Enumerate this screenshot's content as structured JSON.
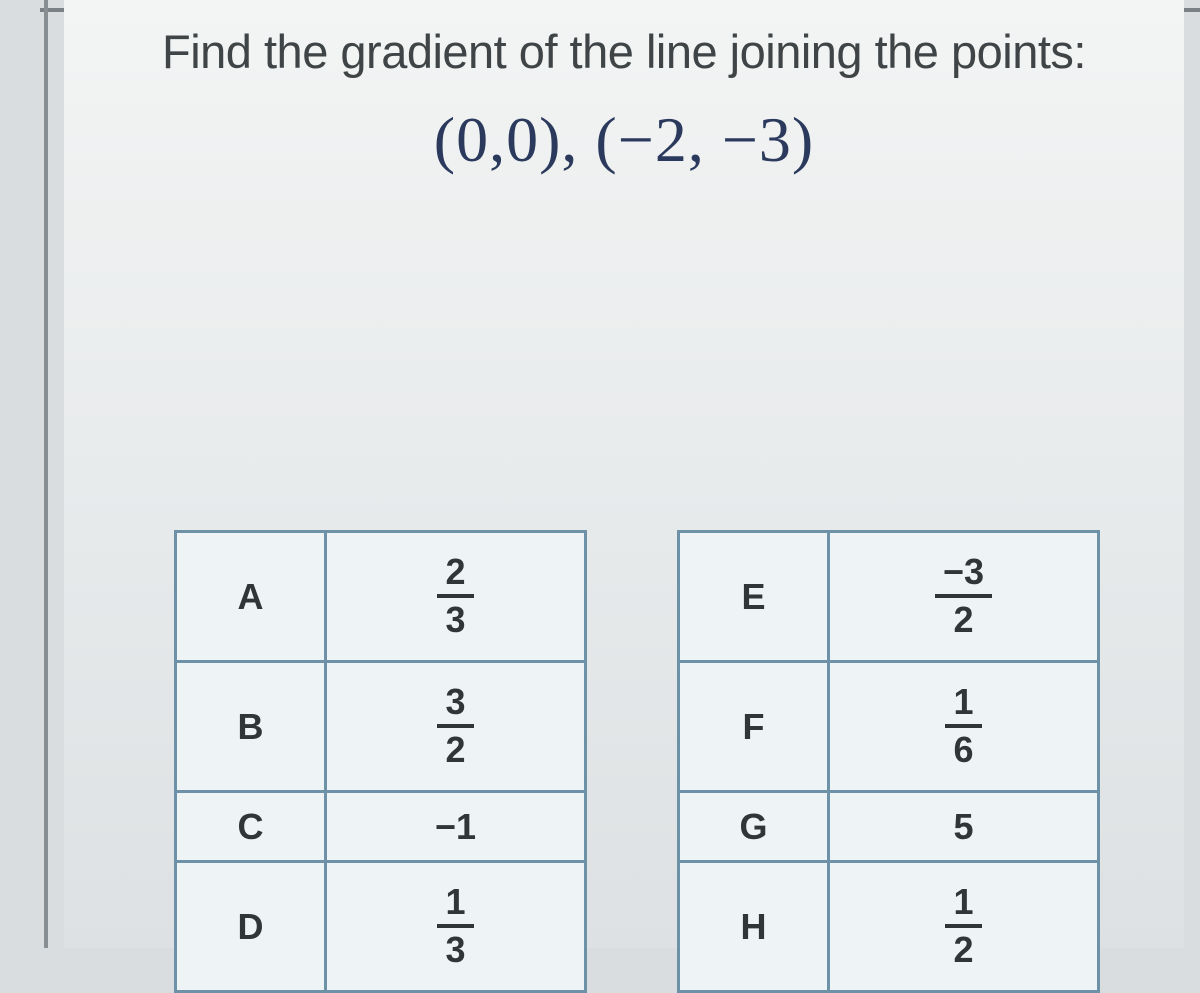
{
  "question": {
    "prompt": "Find the gradient of the line joining the points:",
    "points": "(0,0), (−2, −3)"
  },
  "table_left": {
    "border_color": "#6d91a6",
    "bg_color": "#eef3f5",
    "text_color": "#303538",
    "font_size_pt": 27,
    "rows": [
      {
        "letter": "A",
        "type": "fraction",
        "num": "2",
        "den": "3",
        "height": "frac"
      },
      {
        "letter": "B",
        "type": "fraction",
        "num": "3",
        "den": "2",
        "height": "frac"
      },
      {
        "letter": "C",
        "type": "plain",
        "value": "−1",
        "height": "small"
      },
      {
        "letter": "D",
        "type": "fraction",
        "num": "1",
        "den": "3",
        "height": "frac"
      }
    ]
  },
  "table_right": {
    "border_color": "#6d91a6",
    "bg_color": "#eef3f5",
    "text_color": "#303538",
    "font_size_pt": 27,
    "rows": [
      {
        "letter": "E",
        "type": "negfraction",
        "num": "−3",
        "den": "2",
        "height": "frac"
      },
      {
        "letter": "F",
        "type": "fraction",
        "num": "1",
        "den": "6",
        "height": "frac"
      },
      {
        "letter": "G",
        "type": "plain",
        "value": "5",
        "height": "small"
      },
      {
        "letter": "H",
        "type": "fraction",
        "num": "1",
        "den": "2",
        "height": "frac"
      }
    ]
  },
  "colors": {
    "page_bg": "#e8ebec",
    "outer_bg": "#d9dde0",
    "prompt_color": "#3f4446",
    "points_color": "#2b3a5c"
  }
}
